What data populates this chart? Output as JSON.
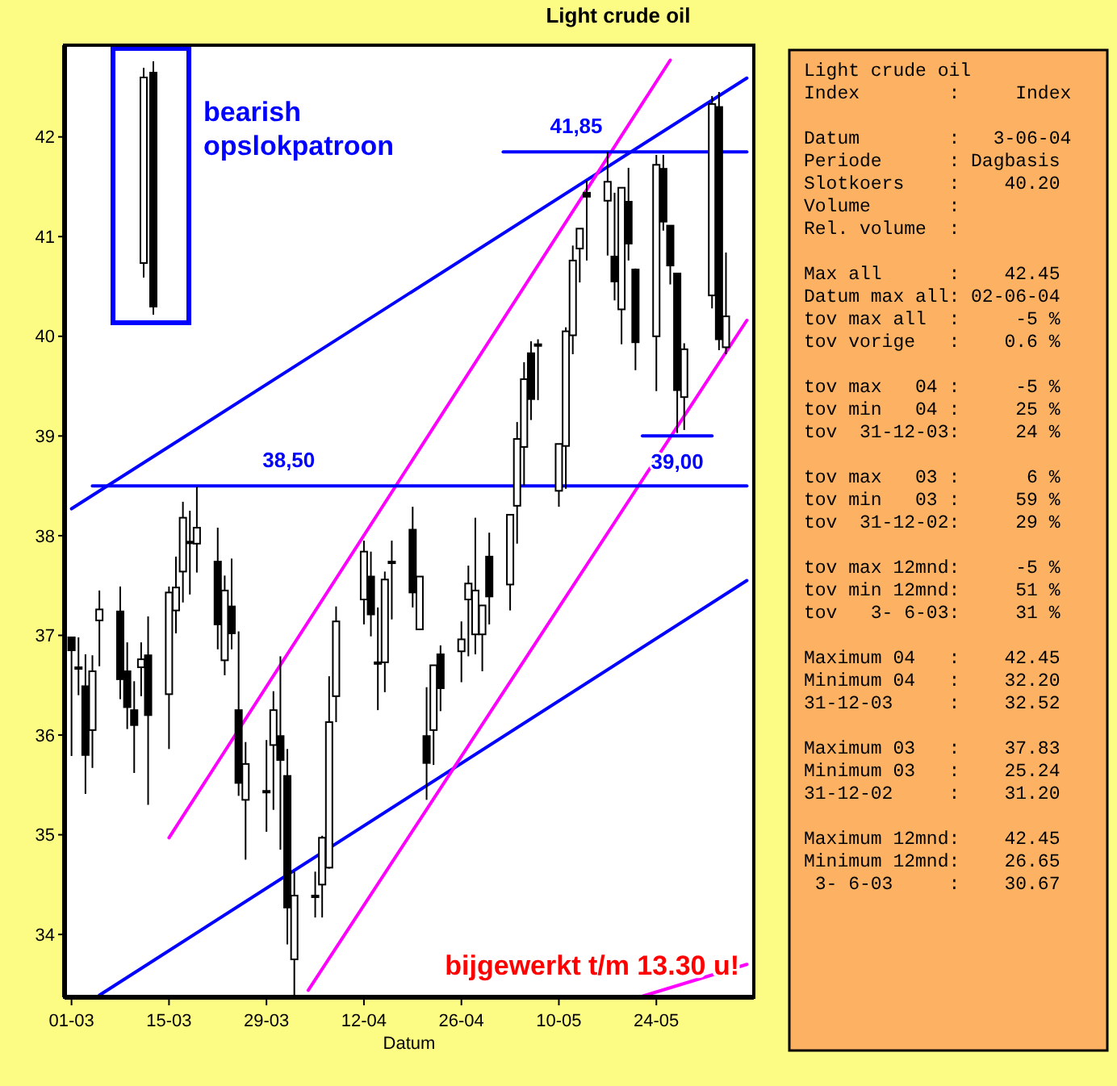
{
  "chart_data": [
    {
      "type": "candlestick",
      "title": "Light crude oil",
      "xlabel": "Datum",
      "x": [
        "--03-01",
        "--03-02",
        "--03-03",
        "--03-04",
        "--03-05",
        "--03-08",
        "--03-09",
        "--03-10",
        "--03-11",
        "--03-12",
        "--03-15",
        "--03-16",
        "--03-17",
        "--03-18",
        "--03-19",
        "--03-22",
        "--03-23",
        "--03-24",
        "--03-25",
        "--03-26",
        "--03-29",
        "--03-30",
        "--03-31",
        "--04-01",
        "--04-02",
        "--04-05",
        "--04-06",
        "--04-07",
        "--04-08",
        "--04-12",
        "--04-13",
        "--04-14",
        "--04-15",
        "--04-16",
        "--04-19",
        "--04-20",
        "--04-21",
        "--04-22",
        "--04-23",
        "--04-26",
        "--04-27",
        "--04-28",
        "--04-29",
        "--04-30",
        "--05-03",
        "--05-04",
        "--05-05",
        "--05-06",
        "--05-07",
        "--05-10",
        "--05-11",
        "--05-12",
        "--05-13",
        "--05-14",
        "--05-17",
        "--05-18",
        "--05-19",
        "--05-20",
        "--05-21",
        "--05-24",
        "--05-25",
        "--05-26",
        "--05-27",
        "--05-28",
        "--06-01",
        "--06-02",
        "--06-03"
      ],
      "ohlc": [
        [
          36.98,
          36.98,
          35.79,
          36.85
        ],
        [
          36.68,
          36.98,
          36.4,
          36.68
        ],
        [
          36.49,
          36.81,
          35.41,
          35.8
        ],
        [
          36.05,
          36.8,
          35.67,
          36.64
        ],
        [
          37.15,
          37.45,
          36.69,
          37.26
        ],
        [
          37.24,
          37.49,
          36.36,
          36.56
        ],
        [
          36.64,
          36.93,
          36.06,
          36.28
        ],
        [
          36.25,
          36.54,
          35.62,
          36.1
        ],
        [
          36.68,
          36.93,
          36.39,
          36.76
        ],
        [
          36.8,
          37.19,
          35.3,
          36.2
        ],
        [
          36.41,
          37.49,
          35.86,
          37.43
        ],
        [
          37.25,
          37.79,
          37.02,
          37.48
        ],
        [
          37.64,
          38.34,
          37.33,
          38.18
        ],
        [
          37.94,
          38.25,
          37.41,
          37.94
        ],
        [
          37.92,
          38.49,
          37.63,
          38.08
        ],
        [
          37.74,
          38.08,
          36.86,
          37.11
        ],
        [
          36.75,
          37.6,
          36.6,
          37.45
        ],
        [
          37.29,
          37.77,
          36.86,
          37.02
        ],
        [
          36.25,
          37.04,
          35.39,
          35.52
        ],
        [
          35.35,
          35.93,
          34.75,
          35.71
        ],
        [
          35.44,
          35.95,
          35.03,
          35.44
        ],
        [
          35.9,
          36.44,
          35.25,
          36.25
        ],
        [
          35.99,
          36.79,
          34.85,
          35.75
        ],
        [
          35.59,
          35.86,
          33.9,
          34.27
        ],
        [
          33.75,
          34.63,
          33.39,
          34.39
        ],
        [
          34.39,
          34.63,
          34.17,
          34.39
        ],
        [
          34.5,
          34.99,
          34.17,
          34.97
        ],
        [
          34.67,
          36.59,
          34.66,
          36.13
        ],
        [
          36.39,
          37.29,
          36.13,
          37.14
        ],
        [
          37.36,
          37.95,
          37.11,
          37.84
        ],
        [
          37.59,
          37.84,
          36.99,
          37.21
        ],
        [
          36.73,
          37.28,
          36.25,
          36.73
        ],
        [
          36.73,
          37.64,
          36.43,
          37.56
        ],
        [
          37.74,
          37.95,
          37.16,
          37.74
        ],
        [
          38.06,
          38.29,
          37.28,
          37.43
        ],
        [
          37.06,
          37.59,
          37.06,
          37.59
        ],
        [
          35.99,
          36.48,
          35.35,
          35.72
        ],
        [
          36.05,
          36.7,
          35.7,
          36.7
        ],
        [
          36.81,
          36.9,
          36.24,
          36.47
        ],
        [
          36.84,
          37.14,
          36.53,
          36.96
        ],
        [
          37.36,
          37.7,
          36.79,
          37.52
        ],
        [
          37.01,
          38.18,
          36.81,
          37.45
        ],
        [
          37.01,
          37.3,
          36.64,
          37.3
        ],
        [
          37.79,
          38.03,
          37.11,
          37.39
        ],
        [
          37.51,
          38.21,
          37.25,
          38.21
        ],
        [
          38.3,
          39.14,
          37.92,
          38.97
        ],
        [
          38.89,
          39.74,
          38.5,
          39.57
        ],
        [
          39.83,
          39.95,
          39.16,
          39.37
        ],
        [
          39.92,
          39.97,
          39.36,
          39.92
        ],
        [
          38.45,
          38.92,
          38.29,
          38.92
        ],
        [
          38.9,
          40.09,
          38.47,
          40.05
        ],
        [
          40.01,
          40.91,
          39.82,
          40.76
        ],
        [
          40.88,
          41.08,
          40.54,
          41.08
        ],
        [
          41.44,
          41.56,
          40.76,
          41.4
        ],
        [
          41.36,
          41.85,
          40.81,
          41.55
        ],
        [
          40.8,
          41.44,
          40.36,
          40.55
        ],
        [
          40.27,
          41.49,
          39.92,
          41.49
        ],
        [
          41.35,
          41.69,
          40.76,
          40.93
        ],
        [
          40.67,
          40.68,
          39.66,
          39.94
        ],
        [
          40.0,
          41.82,
          39.45,
          41.72
        ],
        [
          41.68,
          41.82,
          41.06,
          41.15
        ],
        [
          41.11,
          41.11,
          40.52,
          40.71
        ],
        [
          40.63,
          40.63,
          39.03,
          39.46
        ],
        [
          39.39,
          39.93,
          39.06,
          39.87
        ],
        [
          40.41,
          42.41,
          40.28,
          42.33
        ],
        [
          42.3,
          42.45,
          39.86,
          39.97
        ],
        [
          39.89,
          40.84,
          39.82,
          40.2
        ]
      ],
      "series": [
        {
          "type": "line",
          "color": "#0000ff",
          "x": [
            "--03-01",
            "--06-06"
          ],
          "values": [
            38.27,
            42.59
          ]
        },
        {
          "type": "line",
          "color": "#0000ff",
          "x": [
            "--03-05",
            "--06-06"
          ],
          "values": [
            33.39,
            37.55
          ]
        },
        {
          "type": "line",
          "color": "#ff00ff",
          "x": [
            "--03-15",
            "--05-26"
          ],
          "values": [
            34.97,
            42.77
          ]
        },
        {
          "type": "line",
          "color": "#ff00ff",
          "x": [
            "--04-04",
            "--06-06"
          ],
          "values": [
            33.44,
            40.16
          ]
        },
        {
          "type": "line",
          "color": "#ff00ff",
          "x": [
            "--05-22",
            "--06-06"
          ],
          "values": [
            33.38,
            33.7
          ]
        },
        {
          "type": "line",
          "name": "38,50",
          "color": "#0000ff",
          "x": [
            "--03-04",
            "--06-06"
          ],
          "values": [
            38.5,
            38.5
          ]
        },
        {
          "type": "line",
          "name": "41,85",
          "color": "#0000ff",
          "x": [
            "--05-02",
            "--06-06"
          ],
          "values": [
            41.85,
            41.85
          ]
        },
        {
          "type": "line",
          "name": "39,00",
          "color": "#0000ff",
          "x": [
            "--05-22",
            "--06-01"
          ],
          "values": [
            39.0,
            39.0
          ]
        }
      ],
      "annotations": [
        "bearish opslokpatroon",
        "bijgewerkt t/m 13.30 u!"
      ],
      "xlim": [
        "--02-28",
        "--06-07"
      ],
      "xticks": [
        {
          "value": "--03-01",
          "label": "01-03"
        },
        {
          "value": "--03-15",
          "label": "15-03"
        },
        {
          "value": "--03-29",
          "label": "29-03"
        },
        {
          "value": "--04-12",
          "label": "12-04"
        },
        {
          "value": "--04-26",
          "label": "26-04"
        },
        {
          "value": "--05-10",
          "label": "10-05"
        },
        {
          "value": "--05-24",
          "label": "24-05"
        }
      ],
      "ylim": [
        33.37,
        42.92
      ],
      "yticks": [
        34,
        35,
        36,
        37,
        38,
        39,
        40,
        41,
        42
      ]
    },
    {
      "type": "other",
      "title": "Light crude oil",
      "annotations": [
        "Index        :     Index",
        null,
        "Datum        :   3-06-04",
        "Periode      : Dagbasis",
        "Slotkoers    :    40.20",
        "Volume       :",
        "Rel. volume  :",
        null,
        "Max all      :    42.45",
        "Datum max all: 02-06-04",
        "tov max all  :     -5 %",
        "tov vorige   :    0.6 %",
        null,
        "tov max   04 :     -5 %",
        "tov min   04 :     25 %",
        "tov  31-12-03:     24 %",
        null,
        "tov max   03 :      6 %",
        "tov min   03 :     59 %",
        "tov  31-12-02:     29 %",
        null,
        "tov max 12mnd:     -5 %",
        "tov min 12mnd:     51 %",
        "tov   3- 6-03:     31 %",
        null,
        "Maximum 04   :    42.45",
        "Minimum 04   :    32.20",
        "31-12-03     :    32.52",
        null,
        "Maximum 03   :    37.83",
        "Minimum 03   :    25.24",
        "31-12-02     :    31.20",
        null,
        "Maximum 12mnd:    42.45",
        "Minimum 12mnd:    26.65",
        " 3- 6-03     :    30.67"
      ]
    }
  ]
}
